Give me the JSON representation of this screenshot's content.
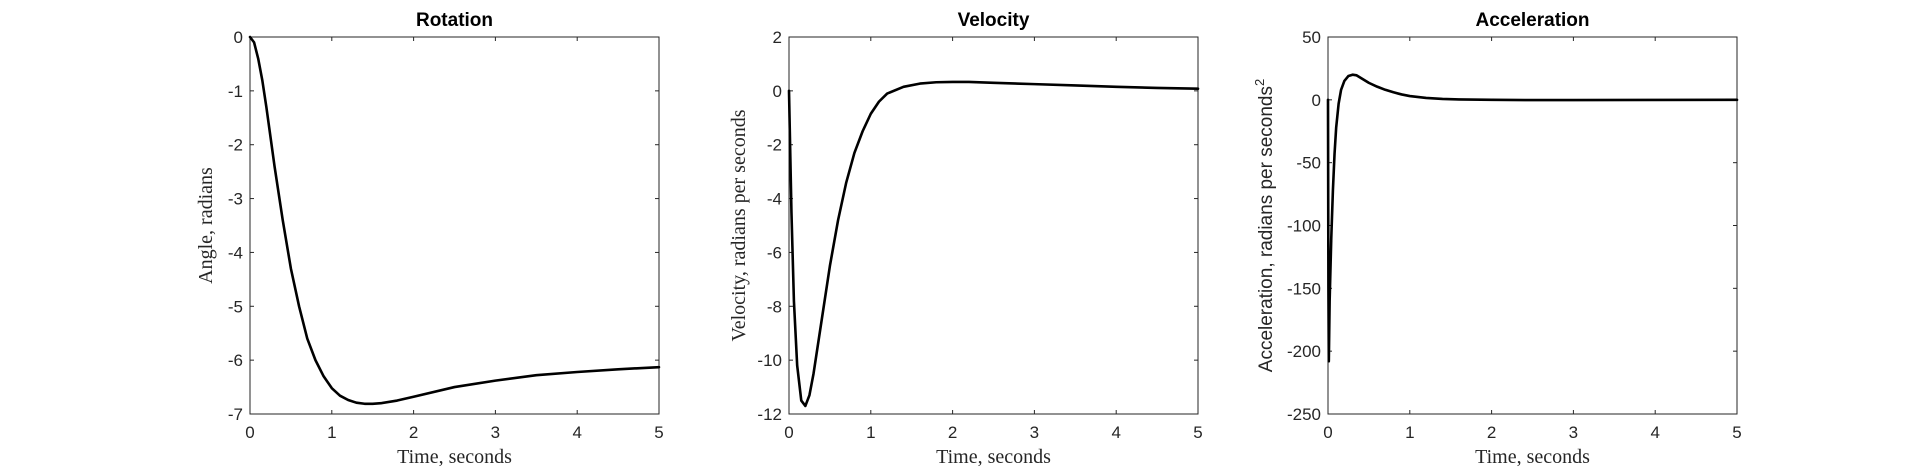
{
  "chart_data": [
    {
      "type": "line",
      "title": "Rotation",
      "xlabel": "Time, seconds",
      "ylabel": "Angle, radians",
      "xlim": [
        0,
        5
      ],
      "ylim": [
        -7,
        0
      ],
      "xticks": [
        0,
        1,
        2,
        3,
        4,
        5
      ],
      "yticks": [
        0,
        -1,
        -2,
        -3,
        -4,
        -5,
        -6,
        -7
      ],
      "xtick_labels": [
        "0",
        "1",
        "2",
        "3",
        "4",
        "5"
      ],
      "ytick_labels": [
        "0",
        "-1",
        "-2",
        "-3",
        "-4",
        "-5",
        "-6",
        "-7"
      ],
      "grid": true,
      "series": [
        {
          "color": "#000000",
          "x": [
            0,
            0.05,
            0.1,
            0.15,
            0.2,
            0.3,
            0.4,
            0.5,
            0.6,
            0.7,
            0.8,
            0.9,
            1.0,
            1.1,
            1.2,
            1.3,
            1.4,
            1.5,
            1.6,
            1.8,
            2.0,
            2.5,
            3.0,
            3.5,
            4.0,
            4.5,
            5.0
          ],
          "y": [
            0,
            -0.1,
            -0.4,
            -0.8,
            -1.3,
            -2.4,
            -3.4,
            -4.3,
            -5.0,
            -5.6,
            -6.0,
            -6.3,
            -6.52,
            -6.66,
            -6.74,
            -6.79,
            -6.81,
            -6.81,
            -6.8,
            -6.75,
            -6.68,
            -6.5,
            -6.38,
            -6.28,
            -6.22,
            -6.17,
            -6.13
          ]
        }
      ]
    },
    {
      "type": "line",
      "title": "Velocity",
      "xlabel": "Time, seconds",
      "ylabel": "Velocity, radians per seconds",
      "xlim": [
        0,
        5
      ],
      "ylim": [
        -12,
        2
      ],
      "xticks": [
        0,
        1,
        2,
        3,
        4,
        5
      ],
      "yticks": [
        2,
        0,
        -2,
        -4,
        -6,
        -8,
        -10,
        -12
      ],
      "xtick_labels": [
        "0",
        "1",
        "2",
        "3",
        "4",
        "5"
      ],
      "ytick_labels": [
        "2",
        "0",
        "-2",
        "-4",
        "-6",
        "-8",
        "-10",
        "-12"
      ],
      "grid": true,
      "series": [
        {
          "color": "#000000",
          "x": [
            0,
            0.03,
            0.06,
            0.1,
            0.15,
            0.2,
            0.25,
            0.3,
            0.4,
            0.5,
            0.6,
            0.7,
            0.8,
            0.9,
            1.0,
            1.1,
            1.2,
            1.4,
            1.6,
            1.8,
            2.0,
            2.2,
            2.5,
            3.0,
            3.5,
            4.0,
            4.5,
            5.0
          ],
          "y": [
            0,
            -4.5,
            -7.8,
            -10.2,
            -11.5,
            -11.7,
            -11.3,
            -10.5,
            -8.5,
            -6.5,
            -4.8,
            -3.4,
            -2.3,
            -1.5,
            -0.85,
            -0.4,
            -0.1,
            0.15,
            0.27,
            0.32,
            0.33,
            0.33,
            0.3,
            0.25,
            0.2,
            0.15,
            0.11,
            0.08
          ]
        }
      ]
    },
    {
      "type": "line",
      "title": "Acceleration",
      "xlabel": "Time, seconds",
      "ylabel": "Acceleration, radians per seconds",
      "ylabel_superscript": "2",
      "xlim": [
        0,
        5
      ],
      "ylim": [
        -250,
        50
      ],
      "xticks": [
        0,
        1,
        2,
        3,
        4,
        5
      ],
      "yticks": [
        50,
        0,
        -50,
        -100,
        -150,
        -200,
        -250
      ],
      "xtick_labels": [
        "0",
        "1",
        "2",
        "3",
        "4",
        "5"
      ],
      "ytick_labels": [
        "50",
        "0",
        "-50",
        "-100",
        "-150",
        "-200",
        "-250"
      ],
      "grid": true,
      "series": [
        {
          "color": "#000000",
          "x": [
            0,
            0.005,
            0.01,
            0.02,
            0.04,
            0.06,
            0.08,
            0.1,
            0.13,
            0.16,
            0.2,
            0.25,
            0.3,
            0.35,
            0.4,
            0.45,
            0.5,
            0.6,
            0.7,
            0.8,
            0.9,
            1.0,
            1.2,
            1.4,
            1.6,
            2.0,
            2.5,
            3.0,
            4.0,
            5.0
          ],
          "y": [
            0,
            -150,
            -208,
            -160,
            -110,
            -72,
            -43,
            -22,
            -3,
            8,
            15,
            19,
            20,
            19.5,
            17.5,
            15.5,
            13.5,
            10.5,
            8,
            6,
            4.3,
            3,
            1.5,
            0.7,
            0.3,
            0,
            -0.2,
            -0.2,
            -0.1,
            0
          ]
        }
      ]
    }
  ]
}
